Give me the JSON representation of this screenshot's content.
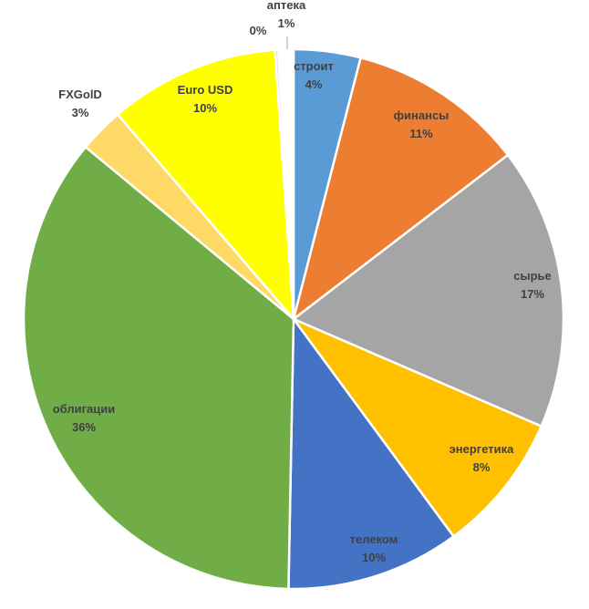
{
  "chart_data": {
    "type": "pie",
    "title": "",
    "start_angle_deg": 0,
    "direction": "clockwise",
    "slices": [
      {
        "label": "строит",
        "pct_label": "4%",
        "value": 4.0,
        "color": "#5B9BD5"
      },
      {
        "label": "финансы",
        "pct_label": "11%",
        "value": 10.6,
        "color": "#ED7D31"
      },
      {
        "label": "сырье",
        "pct_label": "17%",
        "value": 16.9,
        "color": "#A5A5A5"
      },
      {
        "label": "энергетика",
        "pct_label": "8%",
        "value": 8.4,
        "color": "#FFC000"
      },
      {
        "label": "телеком",
        "pct_label": "10%",
        "value": 10.4,
        "color": "#4472C4"
      },
      {
        "label": "облигации",
        "pct_label": "36%",
        "value": 35.7,
        "color": "#70AD47"
      },
      {
        "label": "FXGolD",
        "pct_label": "3%",
        "value": 2.7,
        "color": "#FFD966"
      },
      {
        "label": "Euro USD",
        "pct_label": "10%",
        "value": 10.2,
        "color": "#FFFF00"
      },
      {
        "label": "",
        "pct_label": "0%",
        "value": 0.2,
        "color": "#D9E1F2"
      },
      {
        "label": "аптека",
        "pct_label": "1%",
        "value": 0.9,
        "color": "#FFFFFF"
      }
    ]
  }
}
